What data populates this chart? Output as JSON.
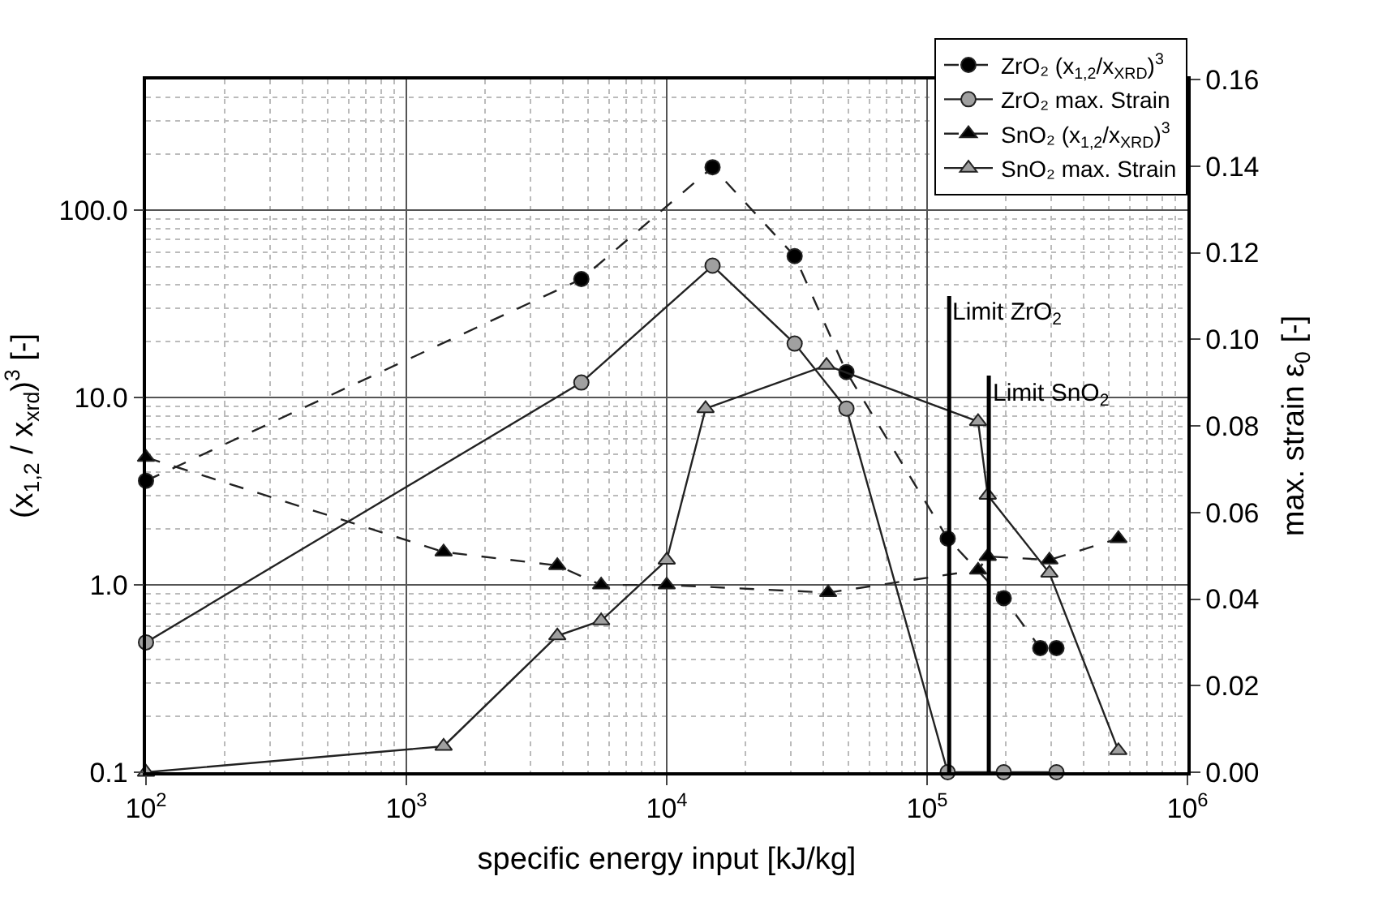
{
  "chart_data": {
    "type": "line",
    "xlabel": "specific energy input [kJ/kg]",
    "ylabel": "(x$_{1,2}$ / x$_{xrd}$)$^{3}$ [-]",
    "y2label": "max. strain ε$_{0}$ [-]",
    "log": "xy",
    "grid": true,
    "legend": "top right",
    "xlim": [
      100,
      1000000
    ],
    "xticks": [
      {
        "value": 100,
        "label": "10$^{2}$"
      },
      {
        "value": 1000,
        "label": "10$^{3}$"
      },
      {
        "value": 10000,
        "label": "10$^{4}$"
      },
      {
        "value": 100000,
        "label": "10$^{5}$"
      },
      {
        "value": 1000000,
        "label": "10$^{6}$"
      }
    ],
    "ylim": [
      0.1,
      500
    ],
    "yticks": [
      {
        "value": 0.1,
        "label": "0.1"
      },
      {
        "value": 1,
        "label": "1.0"
      },
      {
        "value": 10,
        "label": "10.0"
      },
      {
        "value": 100,
        "label": "100.0"
      }
    ],
    "y2lim": [
      0,
      0.16
    ],
    "y2ticks": [
      {
        "value": 0,
        "label": "0.00"
      },
      {
        "value": 0.02,
        "label": "0.02"
      },
      {
        "value": 0.04,
        "label": "0.04"
      },
      {
        "value": 0.06,
        "label": "0.06"
      },
      {
        "value": 0.08,
        "label": "0.08"
      },
      {
        "value": 0.1,
        "label": "0.10"
      },
      {
        "value": 0.12,
        "label": "0.12"
      },
      {
        "value": 0.14,
        "label": "0.14"
      },
      {
        "value": 0.16,
        "label": "0.16"
      }
    ],
    "series": [
      {
        "name": "ZrO₂ (x$_{1,2}$/x$_{XRD}$)$^{3}$",
        "color": "#000000",
        "marker": "circle",
        "line_style": "dashed",
        "x": [
          100,
          4700,
          15000,
          31000,
          49000,
          120000,
          197000,
          272000,
          314000
        ],
        "values": [
          3.6,
          43,
          170,
          57,
          13.7,
          1.77,
          0.85,
          0.46,
          0.46
        ]
      },
      {
        "name": "ZrO₂ max. Strain",
        "color": "#a0a0a0",
        "marker": "circle",
        "line_style": "solid",
        "axis": "y2",
        "x": [
          100,
          4700,
          15000,
          31000,
          49000,
          120000,
          197000,
          314000
        ],
        "values": [
          0.03,
          0.09,
          0.117,
          0.099,
          0.084,
          0,
          0,
          0
        ]
      },
      {
        "name": "SnO₂ (x$_{1,2}$/x$_{XRD}$)$^{3}$",
        "color": "#000000",
        "marker": "triangle",
        "line_style": "dashed",
        "x": [
          100,
          1390,
          3800,
          5600,
          10000,
          41700,
          157000,
          171000,
          295000,
          543000
        ],
        "values": [
          4.8,
          1.5,
          1.27,
          1.0,
          1.0,
          0.91,
          1.2,
          1.42,
          1.36,
          1.77
        ]
      },
      {
        "name": "SnO₂ max. Strain",
        "color": "#a0a0a0",
        "marker": "triangle",
        "line_style": "solid",
        "axis": "y2",
        "x": [
          100,
          1390,
          3800,
          5600,
          10000,
          14100,
          41100,
          157000,
          171000,
          295000,
          543000
        ],
        "values": [
          0,
          0.006,
          0.0315,
          0.035,
          0.049,
          0.084,
          0.094,
          0.081,
          0.064,
          0.046,
          0.005
        ]
      },
      {
        "color": "#000000",
        "marker": "none",
        "line_style": "solid",
        "axis": "y2",
        "x": [
          121600,
          121600
        ],
        "values": [
          0,
          0.11
        ]
      },
      {
        "color": "#000000",
        "marker": "none",
        "line_style": "solid",
        "axis": "y2",
        "x": [
          172600,
          172600
        ],
        "values": [
          0,
          0.0916
        ]
      }
    ],
    "annotations": [
      {
        "text": "Limit ZrO$_{2}$",
        "x": 121600,
        "y": 35
      },
      {
        "text": "Limit SnO$_{2}$",
        "x": 172600,
        "y": 13
      }
    ]
  }
}
